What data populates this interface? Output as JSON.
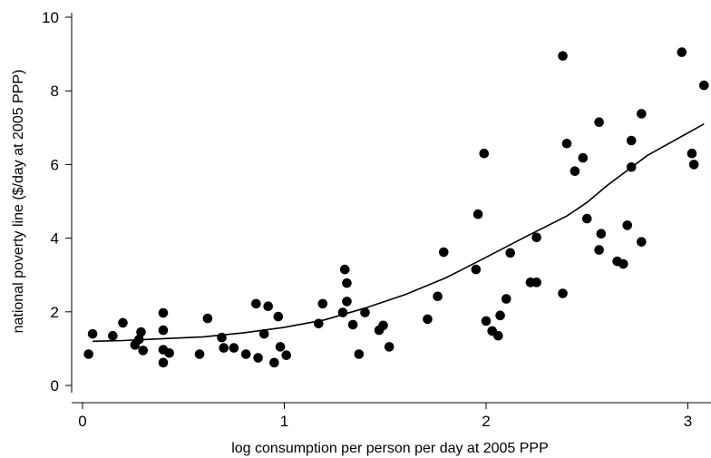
{
  "chart_data": {
    "type": "scatter",
    "title": "",
    "xlabel": "log consumption per person per day at 2005 PPP",
    "ylabel": "national poverty line ($/day at 2005 PPP)",
    "xlim": [
      -0.05,
      3.08
    ],
    "ylim": [
      -0.2,
      10.2
    ],
    "xticks": [
      0,
      1,
      2,
      3
    ],
    "yticks": [
      0,
      2,
      4,
      6,
      8,
      10
    ],
    "grid": false,
    "legend": "none",
    "series": [
      {
        "type": "scatter",
        "color": "#000000",
        "points": [
          [
            0.03,
            0.85
          ],
          [
            0.05,
            1.4
          ],
          [
            0.15,
            1.35
          ],
          [
            0.2,
            1.7
          ],
          [
            0.26,
            1.1
          ],
          [
            0.28,
            1.25
          ],
          [
            0.29,
            1.45
          ],
          [
            0.3,
            0.95
          ],
          [
            0.4,
            1.97
          ],
          [
            0.4,
            1.5
          ],
          [
            0.4,
            0.97
          ],
          [
            0.4,
            0.62
          ],
          [
            0.43,
            0.88
          ],
          [
            0.58,
            0.85
          ],
          [
            0.62,
            1.82
          ],
          [
            0.69,
            1.3
          ],
          [
            0.7,
            1.02
          ],
          [
            0.75,
            1.02
          ],
          [
            0.81,
            0.85
          ],
          [
            0.86,
            2.22
          ],
          [
            0.87,
            0.75
          ],
          [
            0.9,
            1.4
          ],
          [
            0.92,
            2.15
          ],
          [
            0.95,
            0.62
          ],
          [
            0.97,
            1.87
          ],
          [
            0.98,
            1.05
          ],
          [
            1.01,
            0.82
          ],
          [
            1.17,
            1.68
          ],
          [
            1.19,
            2.22
          ],
          [
            1.29,
            1.98
          ],
          [
            1.3,
            3.15
          ],
          [
            1.31,
            2.78
          ],
          [
            1.31,
            2.28
          ],
          [
            1.34,
            1.65
          ],
          [
            1.37,
            0.85
          ],
          [
            1.4,
            1.98
          ],
          [
            1.47,
            1.5
          ],
          [
            1.49,
            1.63
          ],
          [
            1.52,
            1.05
          ],
          [
            1.71,
            1.8
          ],
          [
            1.76,
            2.42
          ],
          [
            1.79,
            3.62
          ],
          [
            1.95,
            3.15
          ],
          [
            1.96,
            4.65
          ],
          [
            1.99,
            6.3
          ],
          [
            2.0,
            1.75
          ],
          [
            2.03,
            1.48
          ],
          [
            2.06,
            1.35
          ],
          [
            2.07,
            1.9
          ],
          [
            2.1,
            2.35
          ],
          [
            2.12,
            3.6
          ],
          [
            2.22,
            2.8
          ],
          [
            2.25,
            4.02
          ],
          [
            2.25,
            2.8
          ],
          [
            2.38,
            8.95
          ],
          [
            2.38,
            2.5
          ],
          [
            2.4,
            6.57
          ],
          [
            2.44,
            5.82
          ],
          [
            2.48,
            6.18
          ],
          [
            2.5,
            4.53
          ],
          [
            2.56,
            7.15
          ],
          [
            2.56,
            3.68
          ],
          [
            2.57,
            4.12
          ],
          [
            2.65,
            3.37
          ],
          [
            2.68,
            3.3
          ],
          [
            2.7,
            4.35
          ],
          [
            2.72,
            6.65
          ],
          [
            2.72,
            5.93
          ],
          [
            2.77,
            7.38
          ],
          [
            2.77,
            3.9
          ],
          [
            2.97,
            9.05
          ],
          [
            3.02,
            6.3
          ],
          [
            3.03,
            6.0
          ],
          [
            3.08,
            8.15
          ]
        ]
      },
      {
        "type": "line",
        "color": "#000000",
        "points": [
          [
            0.05,
            1.2
          ],
          [
            0.2,
            1.22
          ],
          [
            0.4,
            1.27
          ],
          [
            0.6,
            1.32
          ],
          [
            0.8,
            1.43
          ],
          [
            1.0,
            1.58
          ],
          [
            1.2,
            1.78
          ],
          [
            1.4,
            2.1
          ],
          [
            1.6,
            2.47
          ],
          [
            1.8,
            2.92
          ],
          [
            2.0,
            3.48
          ],
          [
            2.2,
            4.05
          ],
          [
            2.4,
            4.6
          ],
          [
            2.5,
            4.97
          ],
          [
            2.6,
            5.43
          ],
          [
            2.8,
            6.25
          ],
          [
            3.08,
            7.1
          ]
        ]
      }
    ]
  }
}
